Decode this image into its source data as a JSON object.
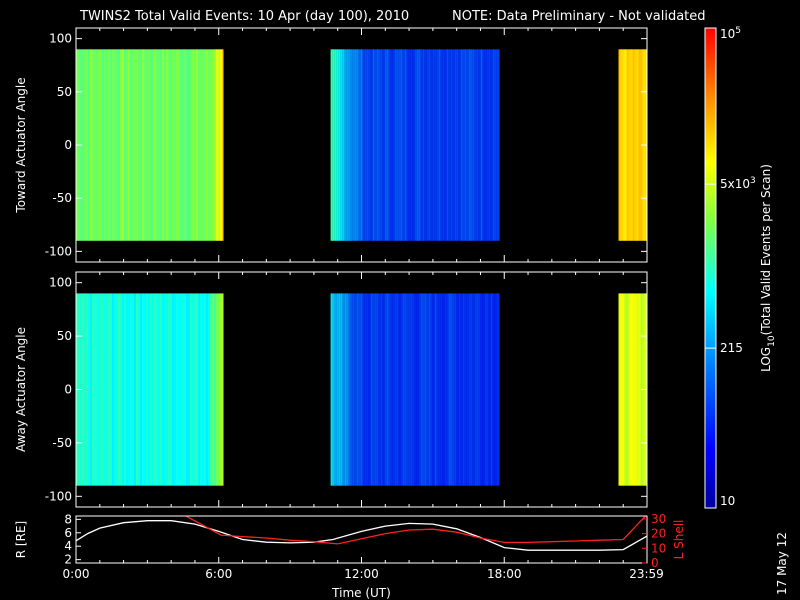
{
  "header": {
    "title": "TWINS2  Total Valid Events: 10 Apr (day 100), 2010",
    "note": "NOTE: Data Preliminary - Not validated",
    "note_color": "#ff2020"
  },
  "date_stamp": "17 May 12",
  "colors": {
    "background": "#000000",
    "axis": "#ffffff",
    "r_line": "#ffffff",
    "l_shell_line": "#ff2020"
  },
  "chart_data": [
    {
      "type": "heatmap",
      "name": "toward",
      "ylabel": "Toward Actuator Angle",
      "ylim": [
        -110,
        110
      ],
      "yticks": [
        100,
        50,
        0,
        -50,
        -100
      ],
      "xlim": [
        0,
        24
      ],
      "data_y_range": [
        -90,
        90
      ],
      "data_blocks": [
        {
          "start": 0,
          "end": 6.2,
          "level": 0.58,
          "edge_start": 5.6,
          "edge_level": 0.78
        },
        {
          "start": 10.7,
          "end": 17.8,
          "level": 0.22,
          "fade_start": 10.7,
          "fade_end": 12.2,
          "fade_level": 0.48
        },
        {
          "start": 22.8,
          "end": 24,
          "level": 0.76
        }
      ]
    },
    {
      "type": "heatmap",
      "name": "away",
      "ylabel": "Away Actuator Angle",
      "ylim": [
        -110,
        110
      ],
      "yticks": [
        100,
        50,
        0,
        -50,
        -100
      ],
      "xlim": [
        0,
        24
      ],
      "data_y_range": [
        -90,
        90
      ],
      "data_blocks": [
        {
          "start": 0,
          "end": 6.2,
          "level": 0.47,
          "edge_start": 5.5,
          "edge_level": 0.68
        },
        {
          "start": 10.7,
          "end": 17.8,
          "level": 0.2,
          "fade_start": 10.7,
          "fade_end": 12.0,
          "fade_level": 0.4
        },
        {
          "start": 22.8,
          "end": 24,
          "level": 0.68
        }
      ]
    },
    {
      "type": "line",
      "name": "orbit",
      "ylabel": "R [RE]",
      "y2label": "L Shell",
      "xlabel": "Time (UT)",
      "ylim": [
        1.5,
        8.5
      ],
      "yticks": [
        8,
        6,
        4,
        2
      ],
      "y2lim": [
        0,
        32
      ],
      "y2ticks": [
        30,
        20,
        10,
        0
      ],
      "xlim": [
        0,
        24
      ],
      "xticks": [
        {
          "value": 0,
          "label": "0:00"
        },
        {
          "value": 6,
          "label": "6:00"
        },
        {
          "value": 12,
          "label": "12:00"
        },
        {
          "value": 18,
          "label": "18:00"
        },
        {
          "value": 23.98,
          "label": "23:59"
        }
      ],
      "series": [
        {
          "axis": "left",
          "x": [
            0,
            0.5,
            1,
            2,
            3,
            4,
            5,
            6,
            7,
            8,
            9,
            10,
            10.8,
            12,
            13,
            14,
            15,
            16,
            17,
            18,
            19,
            20,
            21,
            22,
            23,
            24
          ],
          "y": [
            4.8,
            5.9,
            6.7,
            7.5,
            7.8,
            7.8,
            7.3,
            6.2,
            5.0,
            4.6,
            4.5,
            4.6,
            5.0,
            6.2,
            7.0,
            7.4,
            7.3,
            6.6,
            5.3,
            3.8,
            3.4,
            3.4,
            3.4,
            3.4,
            3.5,
            5.5
          ]
        },
        {
          "axis": "right",
          "x": [
            4.5,
            6.1,
            7,
            8,
            9,
            10,
            11,
            12,
            13,
            14,
            15,
            16,
            17,
            18,
            19,
            20,
            21,
            22,
            23,
            24
          ],
          "y": [
            33,
            19,
            18,
            17,
            15.5,
            14.5,
            13,
            16.5,
            20,
            22.5,
            23,
            21,
            17,
            14,
            14,
            14.5,
            15,
            15.5,
            16,
            33
          ]
        }
      ]
    }
  ],
  "colorbar": {
    "label": "LOG10(Total Valid Events per Scan)",
    "min": 10,
    "max": 100000,
    "tick_labels": [
      {
        "value": 100000,
        "label": "10^5"
      },
      {
        "value": 5000,
        "label": "5x10^3"
      },
      {
        "value": 215,
        "label": "215"
      },
      {
        "value": 10,
        "label": "10"
      }
    ]
  }
}
